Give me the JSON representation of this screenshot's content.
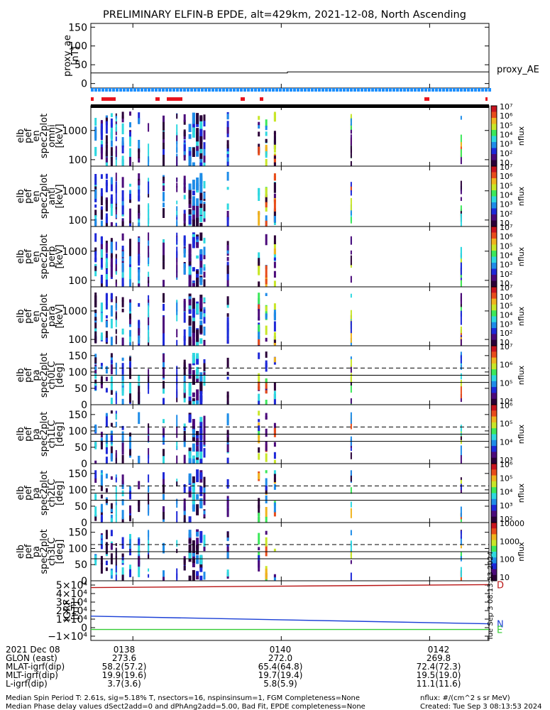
{
  "chart_data": {
    "type": "heatmap",
    "title": "PRELIMINARY ELFIN-B EPDE, alt=429km, 2021-12-08, North Ascending",
    "x_range": [
      "01:37:26",
      "01:42:48"
    ],
    "time_ticks": [
      {
        "time": "01:38",
        "label": "0138"
      },
      {
        "time": "01:40",
        "label": "0140"
      },
      {
        "time": "01:42",
        "label": "0142"
      }
    ],
    "panels": [
      {
        "id": "proxy_ae",
        "type": "line",
        "ylabel": [
          "proxy_ae",
          "[nT]"
        ],
        "ylim": [
          -12,
          160
        ],
        "yticks": [
          "150",
          "100",
          "50",
          "0"
        ],
        "yvals": [
          150,
          100,
          50,
          0
        ],
        "series_label": "proxy_AE",
        "x": [
          "01:37:26",
          "01:40:05",
          "01:40:05",
          "01:42:48"
        ],
        "y": [
          28,
          28,
          31,
          31
        ]
      },
      {
        "id": "omni",
        "type": "spectrogram",
        "ylabel": [
          "elb",
          "pef",
          "en",
          "spec2plot",
          "omni",
          "[keV]"
        ],
        "yscale": "log",
        "ylim": [
          60,
          7000
        ],
        "yticks": [
          "1000",
          "100"
        ],
        "yvals": [
          1000,
          100
        ],
        "zlabel": "nflux",
        "zscale": "log",
        "zlim": [
          10,
          10000000
        ],
        "zticks": [
          "10",
          "10²",
          "10³",
          "10⁴",
          "10⁵",
          "10⁶",
          "10⁷"
        ]
      },
      {
        "id": "anti",
        "type": "spectrogram",
        "ylabel": [
          "elb",
          "pef",
          "en",
          "spec2plot",
          "anti",
          "[keV]"
        ],
        "yscale": "log",
        "ylim": [
          60,
          7000
        ],
        "yticks": [
          "1000",
          "100"
        ],
        "yvals": [
          1000,
          100
        ],
        "zlabel": "nflux",
        "zscale": "log",
        "zlim": [
          10,
          10000000
        ],
        "zticks": [
          "10",
          "10²",
          "10³",
          "10⁴",
          "10⁵",
          "10⁶",
          "10⁷"
        ]
      },
      {
        "id": "perp",
        "type": "spectrogram",
        "ylabel": [
          "elb",
          "pef",
          "en",
          "spec2plot",
          "perp",
          "[keV]"
        ],
        "yscale": "log",
        "ylim": [
          60,
          7000
        ],
        "yticks": [
          "1000",
          "100"
        ],
        "yvals": [
          1000,
          100
        ],
        "zlabel": "nflux",
        "zscale": "log",
        "zlim": [
          10,
          10000000
        ],
        "zticks": [
          "10",
          "10²",
          "10³",
          "10⁴",
          "10⁵",
          "10⁶",
          "10⁷"
        ]
      },
      {
        "id": "para",
        "type": "spectrogram",
        "ylabel": [
          "elb",
          "pef",
          "en",
          "spec2plot",
          "para",
          "[keV]"
        ],
        "yscale": "log",
        "ylim": [
          60,
          7000
        ],
        "yticks": [
          "1000",
          "100"
        ],
        "yvals": [
          1000,
          100
        ],
        "zlabel": "nflux",
        "zscale": "log",
        "zlim": [
          10,
          10000000
        ],
        "zticks": [
          "10",
          "10²",
          "10³",
          "10⁴",
          "10⁵",
          "10⁶",
          "10⁷"
        ]
      },
      {
        "id": "ch0LC",
        "type": "spectrogram",
        "ylabel": [
          "elb",
          "pef",
          "pa",
          "spec2plot",
          "ch0LC",
          "[deg]"
        ],
        "yscale": "linear",
        "ylim": [
          0,
          180
        ],
        "yticks": [
          "150",
          "100",
          "50",
          "0"
        ],
        "yvals": [
          150,
          100,
          50,
          0
        ],
        "ref_lines": [
          {
            "y": 112,
            "style": "dashed"
          },
          {
            "y": 90,
            "style": "solid"
          },
          {
            "y": 68,
            "style": "solid"
          }
        ],
        "zlabel": "nflux",
        "zscale": "log",
        "zlim": [
          1000,
          10000000
        ],
        "zticks": [
          "10⁴",
          "10⁵",
          "10⁶",
          "10⁷"
        ]
      },
      {
        "id": "ch1LC",
        "type": "spectrogram",
        "ylabel": [
          "elb",
          "pef",
          "pa",
          "spec2plot",
          "ch1LC",
          "[deg]"
        ],
        "yscale": "linear",
        "ylim": [
          0,
          180
        ],
        "yticks": [
          "150",
          "100",
          "50",
          "0"
        ],
        "yvals": [
          150,
          100,
          50,
          0
        ],
        "ref_lines": [
          {
            "y": 112,
            "style": "dashed"
          },
          {
            "y": 90,
            "style": "solid"
          },
          {
            "y": 68,
            "style": "solid"
          }
        ],
        "zlabel": "nflux",
        "zscale": "log",
        "zlim": [
          1000,
          10000000
        ],
        "zticks": [
          "10³",
          "10⁴",
          "10⁵",
          "10⁶"
        ]
      },
      {
        "id": "ch2LC",
        "type": "spectrogram",
        "ylabel": [
          "elb",
          "pef",
          "pa",
          "spec2plot",
          "ch2LC",
          "[deg]"
        ],
        "yscale": "linear",
        "ylim": [
          0,
          180
        ],
        "yticks": [
          "150",
          "100",
          "50",
          "0"
        ],
        "yvals": [
          150,
          100,
          50,
          0
        ],
        "ref_lines": [
          {
            "y": 112,
            "style": "dashed"
          },
          {
            "y": 90,
            "style": "solid"
          },
          {
            "y": 68,
            "style": "solid"
          }
        ],
        "zlabel": "nflux",
        "zscale": "log",
        "zlim": [
          100,
          1000000
        ],
        "zticks": [
          "10²",
          "10³",
          "10⁴",
          "10⁵",
          "10⁶"
        ]
      },
      {
        "id": "ch3LC",
        "type": "spectrogram",
        "ylabel": [
          "elb",
          "pef",
          "pa",
          "spec2plot",
          "ch3LC",
          "[deg]"
        ],
        "yscale": "linear",
        "ylim": [
          0,
          180
        ],
        "yticks": [
          "150",
          "100",
          "50",
          "0"
        ],
        "yvals": [
          150,
          100,
          50,
          0
        ],
        "ref_lines": [
          {
            "y": 112,
            "style": "dashed"
          },
          {
            "y": 90,
            "style": "solid"
          },
          {
            "y": 68,
            "style": "solid"
          }
        ],
        "zlabel": "nflux",
        "zscale": "log",
        "zlim": [
          10,
          10000
        ],
        "zticks": [
          "10",
          "100",
          "1000",
          "10000"
        ]
      },
      {
        "id": "igrf",
        "type": "line",
        "ylabel": [
          "IGRF",
          "[nT]"
        ],
        "ylim": [
          -15000,
          55000
        ],
        "yticks": [
          "5×10⁴",
          "4×10⁴",
          "3×10⁴",
          "2×10⁴",
          "1×10⁴",
          "0",
          "−1×10⁴"
        ],
        "yvals": [
          50000,
          40000,
          30000,
          20000,
          10000,
          0,
          -10000
        ],
        "series": [
          {
            "name": "D",
            "color": "#b81414",
            "x": [
              "01:37:26",
              "01:42:48"
            ],
            "y": [
              47000,
              50500
            ]
          },
          {
            "name": "N",
            "color": "#1a3fd6",
            "x": [
              "01:37:26",
              "01:42:48"
            ],
            "y": [
              13500,
              4500
            ]
          },
          {
            "name": "E",
            "color": "#33cc33",
            "x": [
              "01:37:26",
              "01:42:48"
            ],
            "y": [
              -2200,
              -2200
            ]
          }
        ]
      }
    ]
  },
  "side_stamp": "Tue Sep  3 08:13:53 2024",
  "orbit_table": {
    "rows": [
      {
        "label": "2021 Dec 08",
        "values": [
          "0138",
          "0140",
          "0142"
        ]
      },
      {
        "label": "GLON (east)",
        "values": [
          "273.6",
          "272.0",
          "269.8"
        ]
      },
      {
        "label": "MLAT-igrf(dip)",
        "values": [
          "58.2(57.2)",
          "65.4(64.8)",
          "72.4(72.3)"
        ]
      },
      {
        "label": "MLT-igrf(dip)",
        "values": [
          "19.9(19.6)",
          "19.7(19.4)",
          "19.5(19.0)"
        ]
      },
      {
        "label": "L-igrf(dip)",
        "values": [
          "3.7(3.6)",
          "5.8(5.9)",
          "11.1(11.6)"
        ]
      }
    ]
  },
  "footer": {
    "line1": "Median Spin Period T: 2.61s, sig=5.18% T, nsectors=16, nspinsinsum=1, FGM Completeness=None",
    "line2": "Median Phase delay values dSect2add=0 and dPhAng2add=5.00, Bad Fit, EPDE completeness=None",
    "units": "nflux: #/(cm^2 s sr MeV)",
    "created": "Created: Tue Sep  3 08:13:53 2024"
  },
  "colors": {
    "saturation_bar": "#e8141e",
    "phase_bar": "#1e90ff",
    "black_bar": "#000000"
  }
}
